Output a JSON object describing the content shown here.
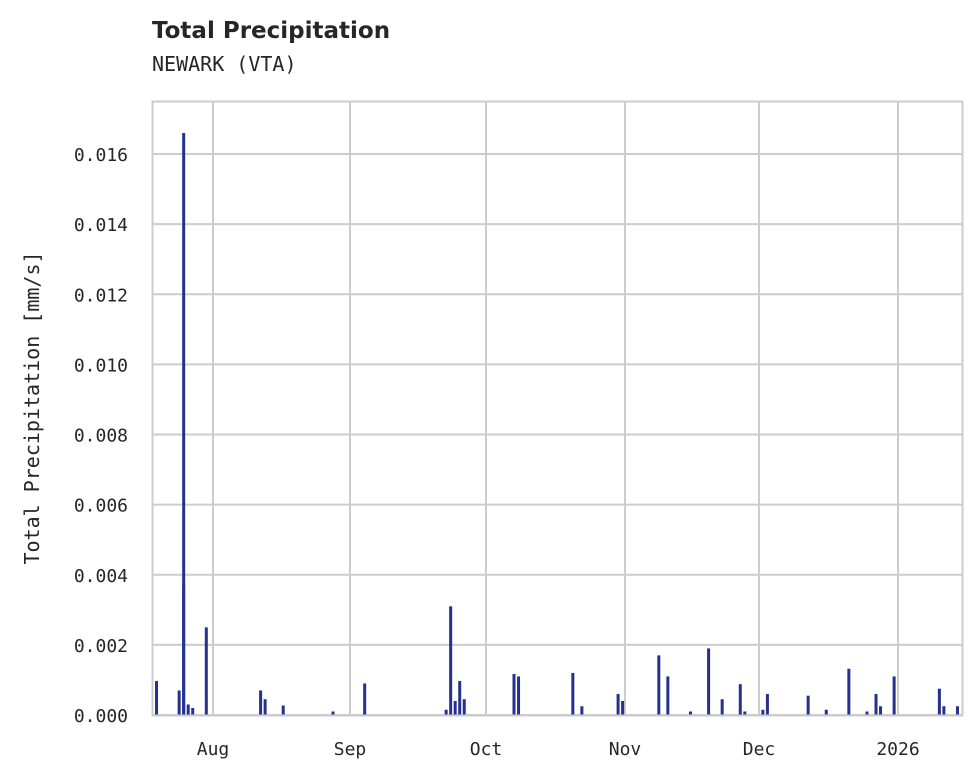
{
  "title": "Total Precipitation",
  "subtitle": "NEWARK (VTA)",
  "colors": {
    "bar": "#25318f",
    "grid": "#cccccc",
    "text": "#262626"
  },
  "chart_data": {
    "type": "bar",
    "title": "Total Precipitation",
    "subtitle": "NEWARK (VTA)",
    "xlabel": "",
    "ylabel": "Total Precipitation [mm/s]",
    "ylim": [
      0,
      0.0175
    ],
    "grid": true,
    "legend": null,
    "y_ticks": [
      "0.000",
      "0.002",
      "0.004",
      "0.006",
      "0.008",
      "0.010",
      "0.012",
      "0.014",
      "0.016"
    ],
    "x_ticks": [
      "Aug",
      "Sep",
      "Oct",
      "Nov",
      "Dec",
      "2026"
    ],
    "x_range": [
      "2025-07-19",
      "2026-01-14"
    ],
    "series": [
      {
        "name": "Total Precipitation",
        "points": [
          {
            "date": "2025-07-20",
            "value": 0.00097
          },
          {
            "date": "2025-07-25",
            "value": 0.0007
          },
          {
            "date": "2025-07-26",
            "value": 0.0037
          },
          {
            "date": "2025-07-26",
            "value": 0.0166
          },
          {
            "date": "2025-07-27",
            "value": 0.0003
          },
          {
            "date": "2025-07-28",
            "value": 0.0002
          },
          {
            "date": "2025-07-31",
            "value": 0.0025
          },
          {
            "date": "2025-08-12",
            "value": 0.0007
          },
          {
            "date": "2025-08-13",
            "value": 0.00045
          },
          {
            "date": "2025-08-17",
            "value": 0.00027
          },
          {
            "date": "2025-08-28",
            "value": 0.0001
          },
          {
            "date": "2025-09-04",
            "value": 0.0009
          },
          {
            "date": "2025-09-22",
            "value": 0.00015
          },
          {
            "date": "2025-09-23",
            "value": 0.0031
          },
          {
            "date": "2025-09-24",
            "value": 0.0004
          },
          {
            "date": "2025-09-25",
            "value": 0.00097
          },
          {
            "date": "2025-09-26",
            "value": 0.00045
          },
          {
            "date": "2025-10-07",
            "value": 0.00117
          },
          {
            "date": "2025-10-08",
            "value": 0.0011
          },
          {
            "date": "2025-10-20",
            "value": 0.0012
          },
          {
            "date": "2025-10-22",
            "value": 0.00025
          },
          {
            "date": "2025-10-30",
            "value": 0.0006
          },
          {
            "date": "2025-10-31",
            "value": 0.0004
          },
          {
            "date": "2025-11-08",
            "value": 0.0017
          },
          {
            "date": "2025-11-10",
            "value": 0.0011
          },
          {
            "date": "2025-11-15",
            "value": 0.0001
          },
          {
            "date": "2025-11-19",
            "value": 0.0019
          },
          {
            "date": "2025-11-22",
            "value": 0.00045
          },
          {
            "date": "2025-11-26",
            "value": 0.00088
          },
          {
            "date": "2025-11-27",
            "value": 0.0001
          },
          {
            "date": "2025-12-01",
            "value": 0.00015
          },
          {
            "date": "2025-12-02",
            "value": 0.0006
          },
          {
            "date": "2025-12-11",
            "value": 0.00055
          },
          {
            "date": "2025-12-15",
            "value": 0.00015
          },
          {
            "date": "2025-12-20",
            "value": 0.00132
          },
          {
            "date": "2025-12-24",
            "value": 0.0001
          },
          {
            "date": "2025-12-26",
            "value": 0.0006
          },
          {
            "date": "2025-12-27",
            "value": 0.00025
          },
          {
            "date": "2025-12-30",
            "value": 0.0011
          },
          {
            "date": "2026-01-09",
            "value": 0.00075
          },
          {
            "date": "2026-01-10",
            "value": 0.00025
          },
          {
            "date": "2026-01-13",
            "value": 0.00025
          }
        ]
      }
    ]
  }
}
